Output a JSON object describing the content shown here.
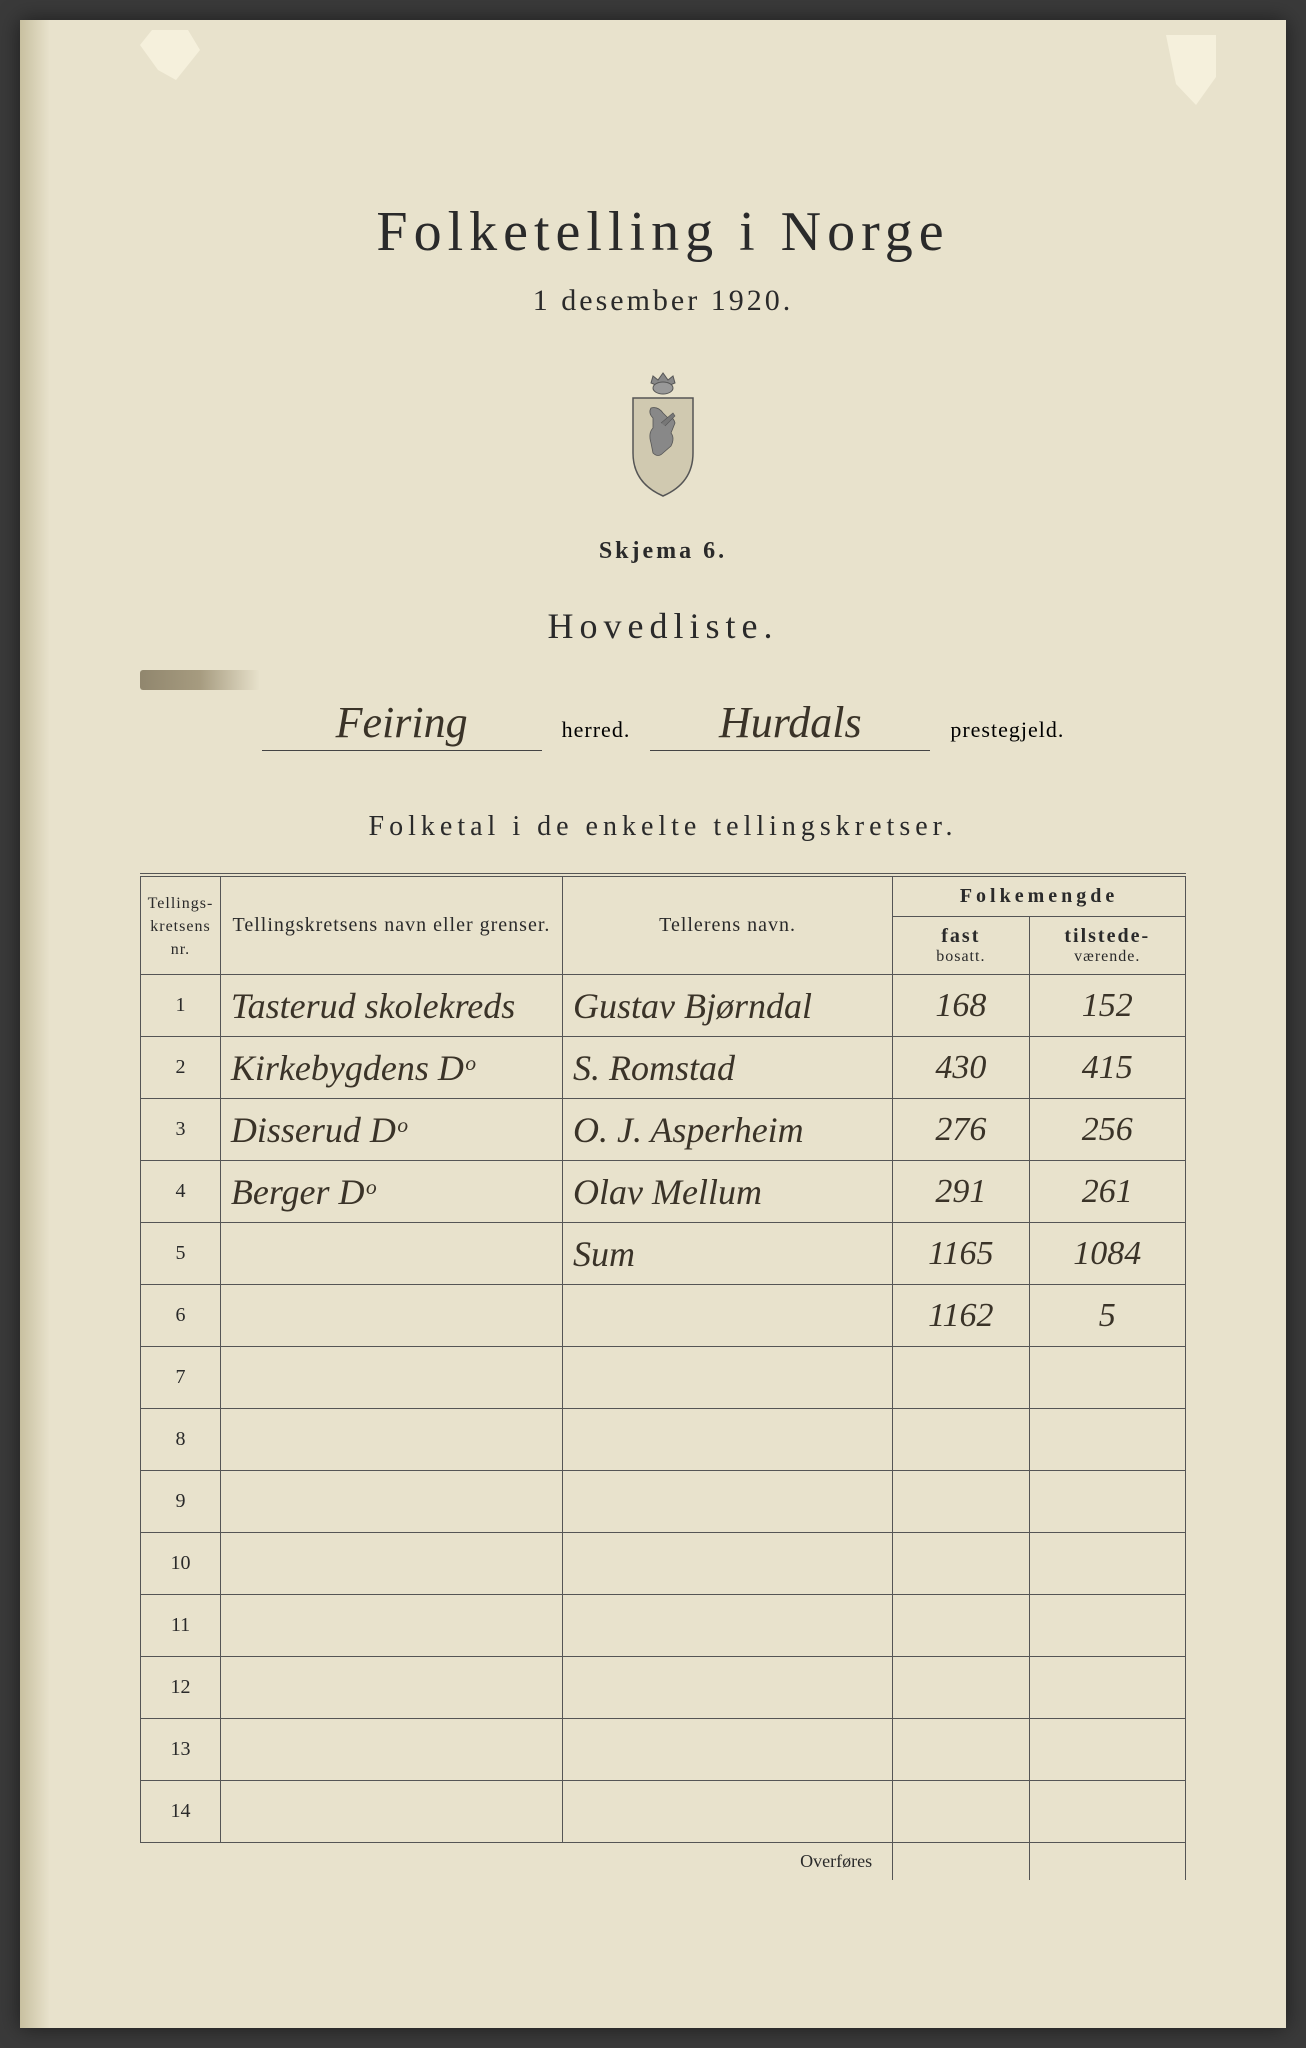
{
  "title": "Folketelling i Norge",
  "subtitle": "1 desember 1920.",
  "skjema": "Skjema 6.",
  "hovedliste": "Hovedliste.",
  "herred_value": "Feiring",
  "herred_label": "herred.",
  "prestegjeld_value": "Hurdals",
  "prestegjeld_label": "prestegjeld.",
  "section_title": "Folketal i de enkelte tellingskretser.",
  "columns": {
    "nr": "Tellings-\nkretsens\nnr.",
    "navn": "Tellingskretsens navn eller grenser.",
    "teller": "Tellerens navn.",
    "folkemengde": "Folkemengde",
    "fast": "fast",
    "fast_sub": "bosatt.",
    "tilstede": "tilstede-",
    "tilstede_sub": "værende."
  },
  "rows": [
    {
      "nr": "1",
      "navn": "Tasterud skolekreds",
      "teller": "Gustav Bjørndal",
      "fast": "168",
      "til": "152"
    },
    {
      "nr": "2",
      "navn": "Kirkebygdens   Dᵒ",
      "teller": "S. Romstad",
      "fast": "430",
      "til": "415"
    },
    {
      "nr": "3",
      "navn": "Disserud   Dᵒ",
      "teller": "O. J. Asperheim",
      "fast": "276",
      "til": "256"
    },
    {
      "nr": "4",
      "navn": "Berger   Dᵒ",
      "teller": "Olav Mellum",
      "fast": "291",
      "til": "261"
    },
    {
      "nr": "5",
      "navn": "",
      "teller": "Sum",
      "fast": "1165",
      "til": "1084"
    },
    {
      "nr": "6",
      "navn": "",
      "teller": "",
      "fast": "1162",
      "til": "5"
    },
    {
      "nr": "7",
      "navn": "",
      "teller": "",
      "fast": "",
      "til": ""
    },
    {
      "nr": "8",
      "navn": "",
      "teller": "",
      "fast": "",
      "til": ""
    },
    {
      "nr": "9",
      "navn": "",
      "teller": "",
      "fast": "",
      "til": ""
    },
    {
      "nr": "10",
      "navn": "",
      "teller": "",
      "fast": "",
      "til": ""
    },
    {
      "nr": "11",
      "navn": "",
      "teller": "",
      "fast": "",
      "til": ""
    },
    {
      "nr": "12",
      "navn": "",
      "teller": "",
      "fast": "",
      "til": ""
    },
    {
      "nr": "13",
      "navn": "",
      "teller": "",
      "fast": "",
      "til": ""
    },
    {
      "nr": "14",
      "navn": "",
      "teller": "",
      "fast": "",
      "til": ""
    }
  ],
  "overfores": "Overføres",
  "colors": {
    "paper": "#e8e2cc",
    "ink": "#2a2a2a",
    "handwriting": "#3a3328",
    "border": "#555555"
  }
}
